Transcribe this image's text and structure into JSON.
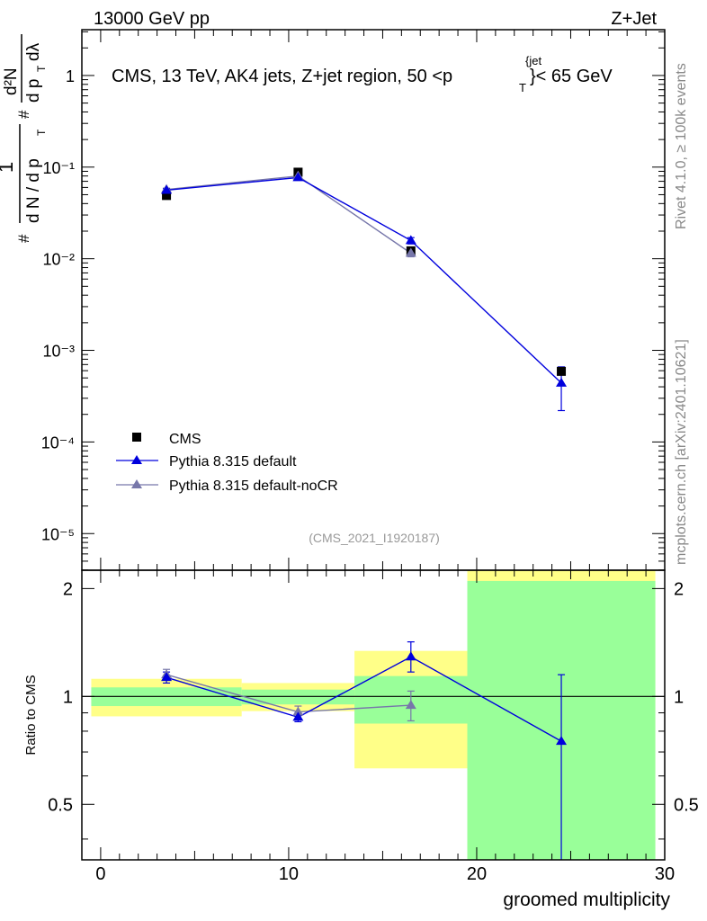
{
  "header": {
    "left": "13000 GeV pp",
    "right": "Z+Jet"
  },
  "side_labels": {
    "rivet": "Rivet 4.1.0, ≥ 100k events",
    "mcplots": "mcplots.cern.ch [arXiv:2401.10621]"
  },
  "colors": {
    "cms": "#000000",
    "default": "#0000dd",
    "nocr": "#7777aa",
    "band_inner": "#99ff99",
    "band_outer": "#ffff88"
  },
  "chart_data": [
    {
      "type": "scatter",
      "scale": "log",
      "title": "CMS, 13 TeV, AK4 jets, Z+jet region, 50 <p_T^{jet}< 65 GeV",
      "title_parts": {
        "main": "CMS, 13 TeV, AK4 jets, Z+jet region, 50 <p",
        "sub": "T",
        "sup": "{jet",
        "tail": "}< 65 GeV"
      },
      "ylabel": "1/(dN/dp_T) d^2N/(dp_T dλ)",
      "ylabel_parts": {
        "sharp": "#",
        "one": "1",
        "dN": "d N / d p",
        "sub": "T",
        "d2N": "d²N",
        "dp": "d p",
        "dlam": "dλ"
      },
      "watermark": "(CMS_2021_I1920187)",
      "xlim": [
        -1,
        30
      ],
      "ylim_exp": [
        -5.4,
        0.5
      ],
      "y_tick_labels": [
        "10⁻⁵",
        "10⁻⁴",
        "10⁻³",
        "10⁻²",
        "10⁻¹",
        "1"
      ],
      "legend_position": "bottom-left",
      "legend": [
        "CMS",
        "Pythia 8.315 default",
        "Pythia 8.315 default-noCR"
      ],
      "series": [
        {
          "name": "CMS",
          "marker": "square",
          "points": [
            {
              "x": 3.5,
              "y": 0.049
            },
            {
              "x": 10.5,
              "y": 0.088
            },
            {
              "x": 16.5,
              "y": 0.0122
            },
            {
              "x": 24.5,
              "y": 0.00059
            }
          ]
        },
        {
          "name": "Pythia 8.315 default",
          "marker": "triangle",
          "points": [
            {
              "x": 3.5,
              "y": 0.056,
              "lo": 0.054,
              "hi": 0.058
            },
            {
              "x": 10.5,
              "y": 0.077,
              "lo": 0.075,
              "hi": 0.079
            },
            {
              "x": 16.5,
              "y": 0.0158,
              "lo": 0.0145,
              "hi": 0.017
            },
            {
              "x": 24.5,
              "y": 0.00044,
              "lo": 0.00022,
              "hi": 0.00066
            }
          ]
        },
        {
          "name": "Pythia 8.315 default-noCR",
          "marker": "triangle",
          "points": [
            {
              "x": 3.5,
              "y": 0.057,
              "lo": 0.055,
              "hi": 0.059
            },
            {
              "x": 10.5,
              "y": 0.08,
              "lo": 0.078,
              "hi": 0.082
            },
            {
              "x": 16.5,
              "y": 0.0115,
              "lo": 0.0105,
              "hi": 0.0125
            }
          ]
        }
      ]
    },
    {
      "type": "scatter",
      "ylabel": "Ratio to CMS",
      "xlabel": "groomed multiplicity",
      "xlim": [
        -1,
        30
      ],
      "ylim": [
        0.35,
        2.25
      ],
      "x_ticks": [
        0,
        10,
        20,
        30
      ],
      "y_ticks": [
        0.5,
        1,
        2
      ],
      "y_tick_labels": [
        "0.5",
        "1",
        "2"
      ],
      "reference_line": 1,
      "bands": [
        {
          "x0": -0.5,
          "x1": 7.5,
          "in_lo": 0.94,
          "in_hi": 1.06,
          "out_lo": 0.88,
          "out_hi": 1.12
        },
        {
          "x0": 7.5,
          "x1": 13.5,
          "in_lo": 0.95,
          "in_hi": 1.045,
          "out_lo": 0.91,
          "out_hi": 1.09
        },
        {
          "x0": 13.5,
          "x1": 19.5,
          "in_lo": 0.84,
          "in_hi": 1.14,
          "out_lo": 0.63,
          "out_hi": 1.34
        },
        {
          "x0": 19.5,
          "x1": 29.5,
          "in_lo": 0.35,
          "in_hi": 2.1,
          "out_lo": 0.35,
          "out_hi": 2.25
        }
      ],
      "series": [
        {
          "name": "Pythia 8.315 default",
          "points": [
            {
              "x": 3.5,
              "y": 1.13,
              "lo": 1.09,
              "hi": 1.17
            },
            {
              "x": 10.5,
              "y": 0.875,
              "lo": 0.85,
              "hi": 0.9
            },
            {
              "x": 16.5,
              "y": 1.29,
              "lo": 1.17,
              "hi": 1.42
            },
            {
              "x": 24.5,
              "y": 0.75,
              "lo": 0.35,
              "hi": 1.15
            }
          ]
        },
        {
          "name": "Pythia 8.315 default-noCR",
          "points": [
            {
              "x": 3.5,
              "y": 1.15,
              "lo": 1.11,
              "hi": 1.19
            },
            {
              "x": 10.5,
              "y": 0.905,
              "lo": 0.87,
              "hi": 0.94
            },
            {
              "x": 16.5,
              "y": 0.945,
              "lo": 0.855,
              "hi": 1.035
            }
          ]
        }
      ]
    }
  ]
}
